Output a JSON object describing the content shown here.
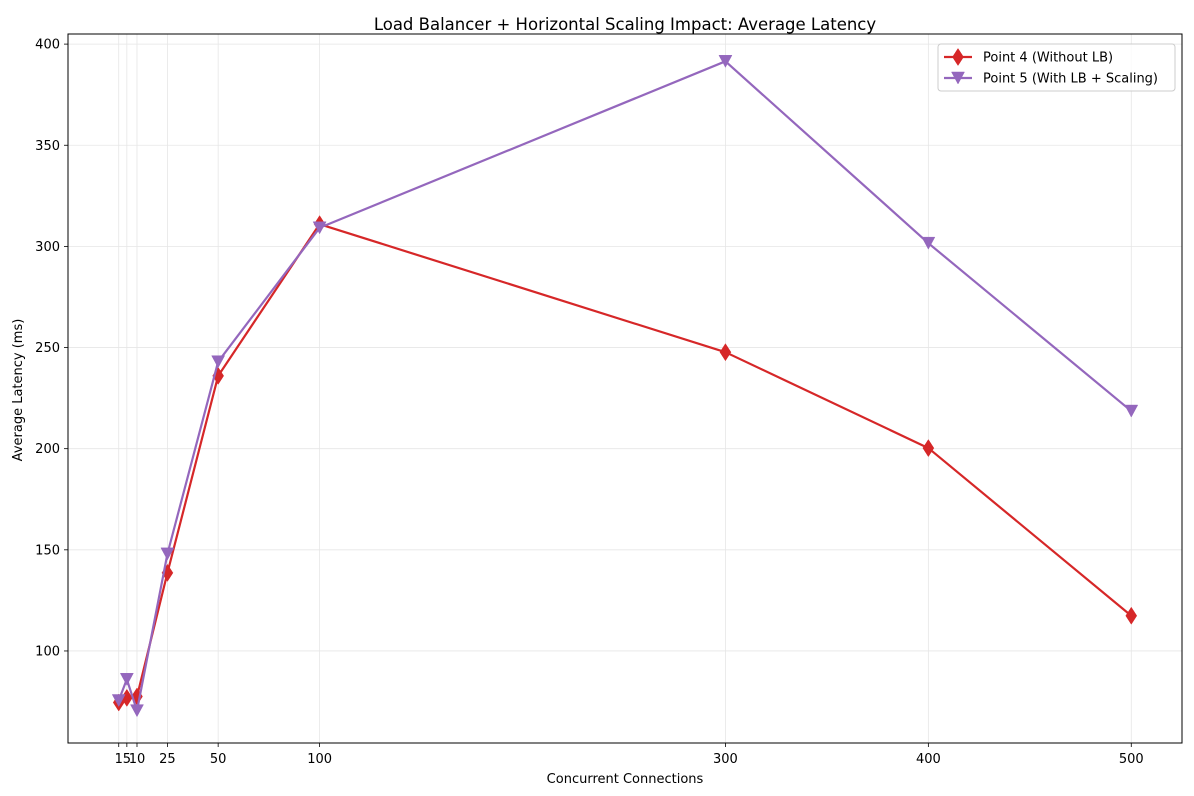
{
  "chart_data": {
    "type": "line",
    "title": "Load Balancer + Horizontal Scaling Impact: Average Latency",
    "xlabel": "Concurrent Connections",
    "ylabel": "Average Latency (ms)",
    "x": [
      1,
      5,
      10,
      25,
      50,
      100,
      300,
      400,
      500
    ],
    "xticks": [
      1,
      5,
      10,
      25,
      50,
      100,
      300,
      400,
      500
    ],
    "xtick_labels": [
      "1",
      "5",
      "10",
      "25",
      "50",
      "100",
      "300",
      "400",
      "500"
    ],
    "xlim": [
      -24,
      525
    ],
    "yticks": [
      100,
      150,
      200,
      250,
      300,
      350,
      400
    ],
    "ylim": [
      54.5,
      405
    ],
    "grid": true,
    "legend_position": "top-right",
    "series": [
      {
        "name": "Point 4 (Without LB)",
        "color": "#d62728",
        "marker": "thin-diamond",
        "values": [
          74.5,
          76.8,
          77.5,
          138.6,
          236.0,
          311.0,
          247.7,
          200.3,
          117.4
        ]
      },
      {
        "name": "Point 5 (With LB + Scaling)",
        "color": "#9467bd",
        "marker": "triangle-down",
        "values": [
          75.5,
          86.0,
          70.5,
          148.0,
          243.0,
          309.2,
          391.5,
          301.6,
          218.6
        ]
      }
    ]
  }
}
